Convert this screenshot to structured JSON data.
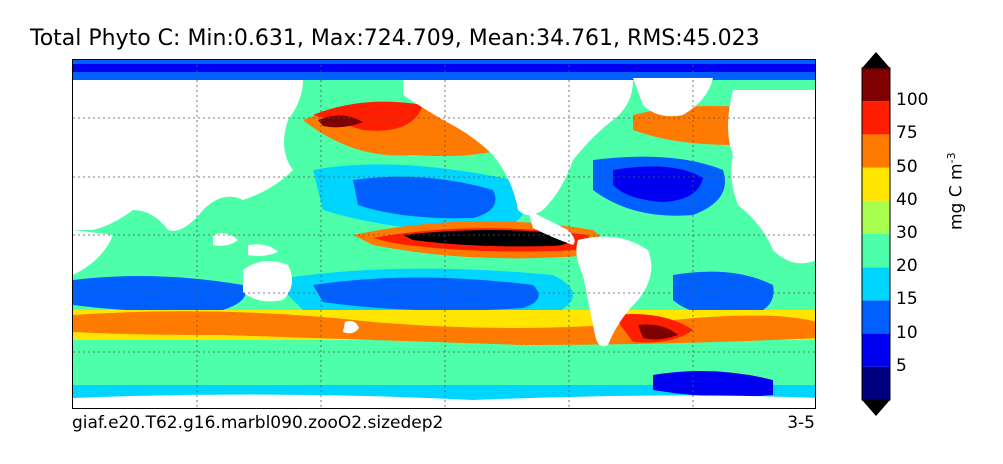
{
  "title": "Total Phyto C: Min:0.631, Max:724.709, Mean:34.761, RMS:45.023",
  "run_label": "giaf.e20.T62.g16.marbl090.zooO2.sizedep2",
  "season_label": "3-5",
  "colorbar": {
    "units_base": "mg C m",
    "units_exp": "-3",
    "levels": [
      "5",
      "10",
      "15",
      "20",
      "30",
      "40",
      "50",
      "75",
      "100"
    ],
    "colors": [
      "#00007f",
      "#0000f0",
      "#0060ff",
      "#00d5ff",
      "#4dffa9",
      "#a9ff4d",
      "#ffe500",
      "#ff7a00",
      "#ff1e00",
      "#7f0000"
    ],
    "extend": "both"
  }
}
